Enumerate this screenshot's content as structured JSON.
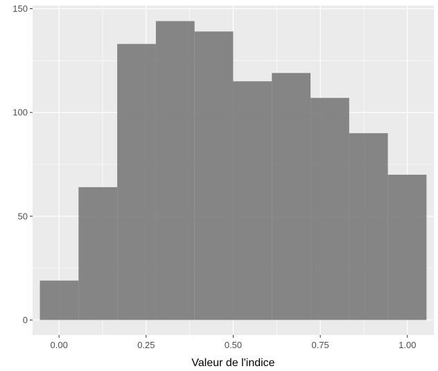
{
  "chart_data": {
    "type": "bar",
    "xlabel": "Valeur de l'indice",
    "ylabel": "",
    "xlim": [
      -0.076,
      1.076
    ],
    "ylim": [
      -7.2,
      151.5
    ],
    "x_ticks": [
      0.0,
      0.25,
      0.5,
      0.75,
      1.0
    ],
    "x_tick_labels": [
      "0.00",
      "0.25",
      "0.50",
      "0.75",
      "1.00"
    ],
    "y_ticks": [
      0,
      50,
      100,
      150
    ],
    "y_tick_labels": [
      "0",
      "50",
      "100",
      "150"
    ],
    "bins": [
      {
        "x0": -0.055,
        "x1": 0.056,
        "count": 19
      },
      {
        "x0": 0.056,
        "x1": 0.167,
        "count": 64
      },
      {
        "x0": 0.167,
        "x1": 0.278,
        "count": 133
      },
      {
        "x0": 0.278,
        "x1": 0.389,
        "count": 144
      },
      {
        "x0": 0.389,
        "x1": 0.5,
        "count": 139
      },
      {
        "x0": 0.5,
        "x1": 0.611,
        "count": 115
      },
      {
        "x0": 0.611,
        "x1": 0.722,
        "count": 119
      },
      {
        "x0": 0.722,
        "x1": 0.833,
        "count": 107
      },
      {
        "x0": 0.833,
        "x1": 0.944,
        "count": 90
      },
      {
        "x0": 0.944,
        "x1": 1.055,
        "count": 70
      }
    ],
    "grid": true,
    "colors": {
      "panel": "#ebebeb",
      "grid": "#ffffff",
      "bar": "#808080",
      "tick_text": "#4d4d4d",
      "tick_mark": "#333333"
    }
  }
}
